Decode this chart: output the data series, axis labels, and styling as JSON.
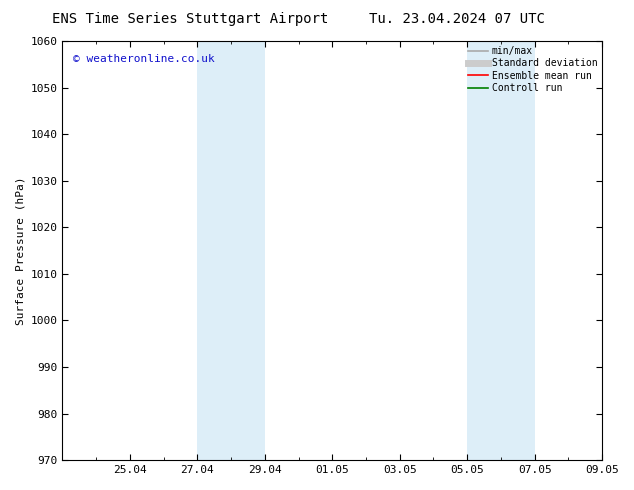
{
  "title_left": "ENS Time Series Stuttgart Airport",
  "title_right": "Tu. 23.04.2024 07 UTC",
  "ylabel": "Surface Pressure (hPa)",
  "ylim": [
    970,
    1060
  ],
  "yticks": [
    970,
    980,
    990,
    1000,
    1010,
    1020,
    1030,
    1040,
    1050,
    1060
  ],
  "xlim": [
    0,
    16
  ],
  "xtick_labels": [
    "25.04",
    "27.04",
    "29.04",
    "01.05",
    "03.05",
    "05.05",
    "07.05",
    "09.05"
  ],
  "xtick_positions": [
    2,
    4,
    6,
    8,
    10,
    12,
    14,
    16
  ],
  "minor_xtick_positions": [
    0,
    1,
    2,
    3,
    4,
    5,
    6,
    7,
    8,
    9,
    10,
    11,
    12,
    13,
    14,
    15,
    16
  ],
  "shaded_bands": [
    {
      "x_start": 4,
      "x_end": 6,
      "color": "#ddeef8"
    },
    {
      "x_start": 12,
      "x_end": 14,
      "color": "#ddeef8"
    }
  ],
  "watermark": "© weatheronline.co.uk",
  "watermark_color": "#1111cc",
  "legend_items": [
    {
      "label": "min/max",
      "color": "#aaaaaa",
      "lw": 1.2
    },
    {
      "label": "Standard deviation",
      "color": "#cccccc",
      "lw": 5
    },
    {
      "label": "Ensemble mean run",
      "color": "#ff0000",
      "lw": 1.2
    },
    {
      "label": "Controll run",
      "color": "#008000",
      "lw": 1.2
    }
  ],
  "bg_color": "#ffffff",
  "title_fontsize": 10,
  "axis_label_fontsize": 8,
  "tick_fontsize": 8
}
